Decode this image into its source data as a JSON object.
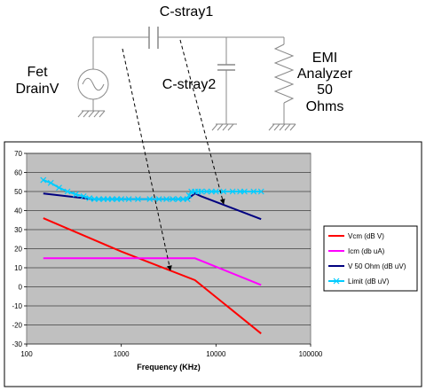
{
  "schematic": {
    "source_label_line1": "Fet",
    "source_label_line2": "DrainV",
    "cap1_label": "C-stray1",
    "cap2_label": "C-stray2",
    "load_label_line1": "EMI",
    "load_label_line2": "Analyzer",
    "load_label_line3": "50",
    "load_label_line4": "Ohms"
  },
  "chart_data": {
    "type": "line",
    "xlabel": "Frequency (KHz)",
    "ylabel": "",
    "x_scale": "log",
    "xlim": [
      100,
      100000
    ],
    "ylim": [
      -30,
      70
    ],
    "x_ticks": [
      "100",
      "1000",
      "10000",
      "100000"
    ],
    "y_ticks": [
      "70",
      "60",
      "50",
      "40",
      "30",
      "20",
      "10",
      "0",
      "-10",
      "-20",
      "-30"
    ],
    "grid": "horizontal",
    "legend_position": "right",
    "series": [
      {
        "name": "Vcm (dB V)",
        "color": "#ff0000",
        "marker": "none",
        "x": [
          150,
          1000,
          6000,
          30000
        ],
        "y": [
          36,
          18.5,
          3.5,
          -24.5
        ]
      },
      {
        "name": "Icm (db uA)",
        "color": "#ff00ff",
        "marker": "none",
        "x": [
          150,
          6000,
          30000
        ],
        "y": [
          15,
          15,
          1
        ]
      },
      {
        "name": "V 50 Ohm (dB uV)",
        "color": "#000080",
        "marker": "none",
        "x": [
          150,
          500,
          5000,
          6000,
          7000,
          30000
        ],
        "y": [
          49,
          46,
          46,
          49,
          47.5,
          35.5
        ]
      },
      {
        "name": "Limit (dB uV)",
        "color": "#00ccff",
        "marker": "x",
        "x": [
          150,
          180,
          220,
          270,
          330,
          400,
          460,
          520,
          580,
          650,
          720,
          800,
          900,
          1000,
          1200,
          1500,
          2000,
          2500,
          3000,
          3500,
          4000,
          4500,
          5000,
          5200,
          5500,
          6000,
          6500,
          7000,
          8000,
          9000,
          10000,
          12000,
          15000,
          18000,
          20000,
          25000,
          30000
        ],
        "y": [
          56,
          54.5,
          52,
          50,
          48.5,
          47.5,
          46.5,
          46,
          46,
          46,
          46,
          46,
          46,
          46,
          46,
          46,
          46,
          46,
          46,
          46,
          46,
          46,
          46,
          48,
          50,
          50,
          50,
          50,
          50,
          50,
          50,
          50,
          50,
          50,
          50,
          50,
          50
        ]
      }
    ]
  }
}
